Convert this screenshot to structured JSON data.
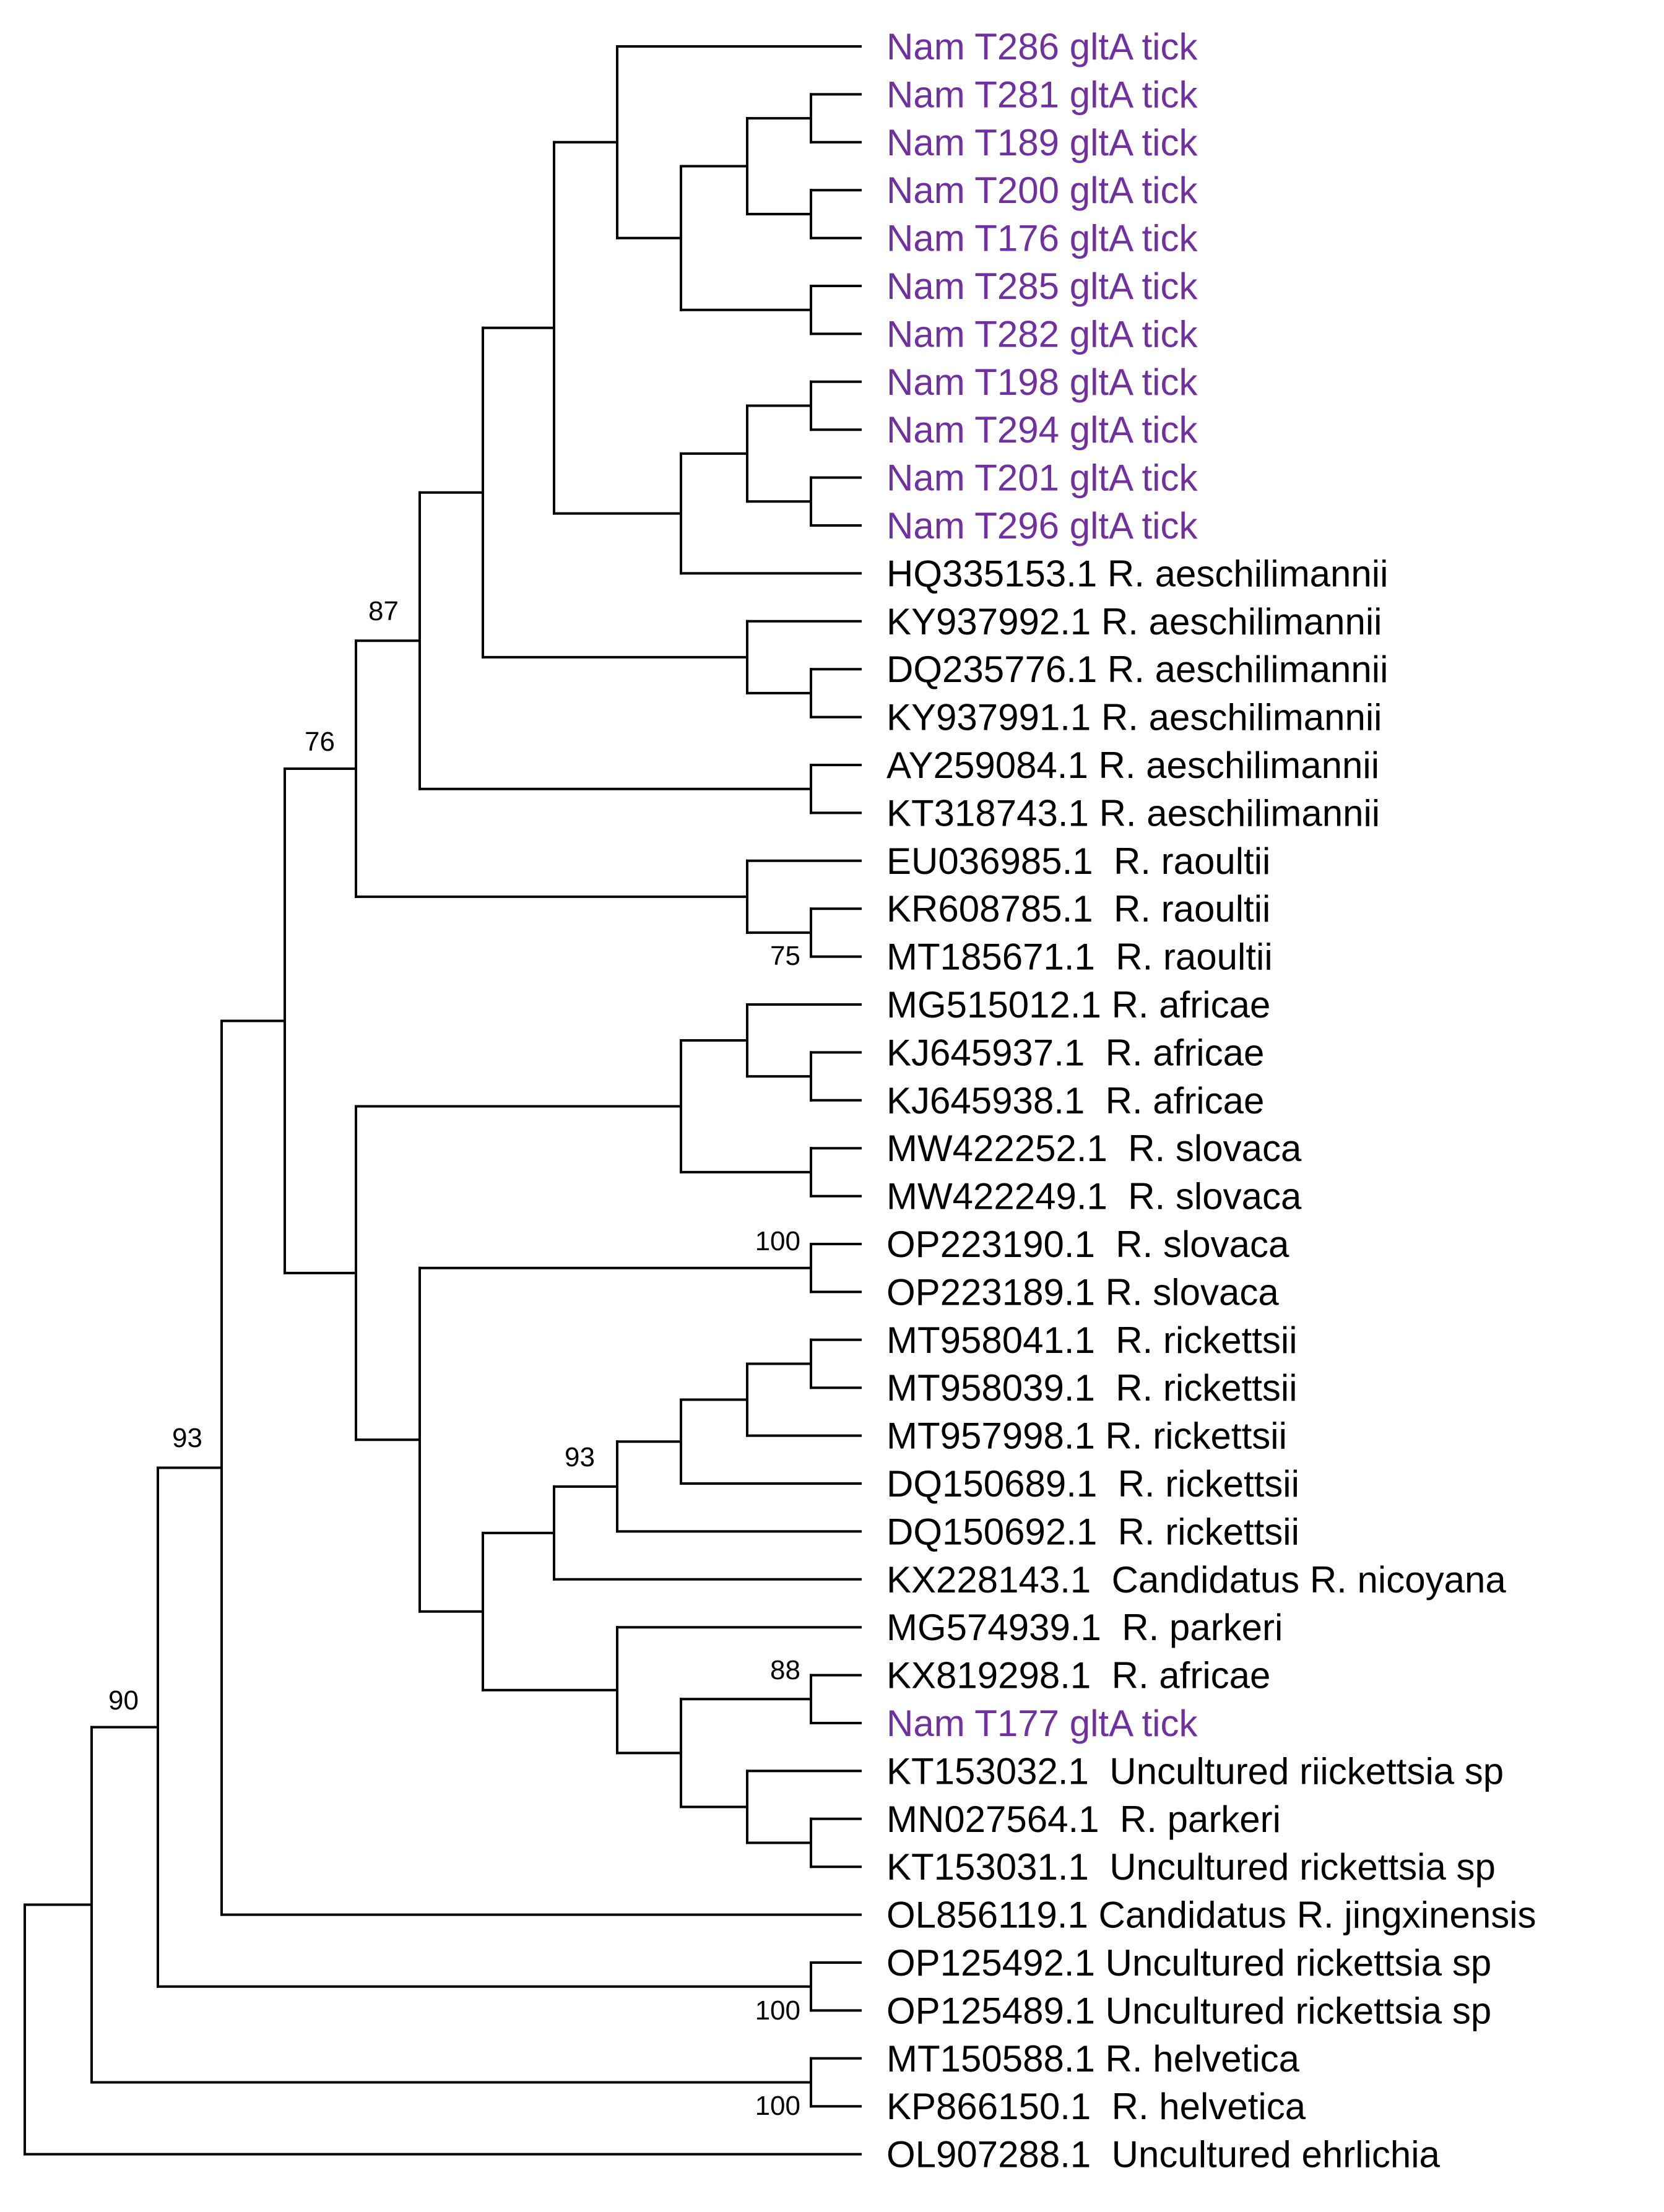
{
  "colors": {
    "query": "#7030a0",
    "reference": "#000000"
  },
  "tree": {
    "type": "phylogenetic-tree",
    "leaves": [
      {
        "label": "Nam T286 gltA tick",
        "group": "query"
      },
      {
        "label": "Nam T281 gltA tick",
        "group": "query"
      },
      {
        "label": "Nam T189 gltA tick",
        "group": "query"
      },
      {
        "label": "Nam T200 gltA tick",
        "group": "query"
      },
      {
        "label": "Nam T176 gltA tick",
        "group": "query"
      },
      {
        "label": "Nam T285 gltA tick",
        "group": "query"
      },
      {
        "label": "Nam T282 gltA tick",
        "group": "query"
      },
      {
        "label": "Nam T198 gltA tick",
        "group": "query"
      },
      {
        "label": "Nam T294 gltA tick",
        "group": "query"
      },
      {
        "label": "Nam T201 gltA tick",
        "group": "query"
      },
      {
        "label": "Nam T296 gltA tick",
        "group": "query"
      },
      {
        "label": "HQ335153.1 R. aeschilimannii",
        "group": "reference"
      },
      {
        "label": "KY937992.1 R. aeschilimannii",
        "group": "reference"
      },
      {
        "label": "DQ235776.1 R. aeschilimannii",
        "group": "reference"
      },
      {
        "label": "KY937991.1 R. aeschilimannii",
        "group": "reference"
      },
      {
        "label": "AY259084.1 R. aeschilimannii",
        "group": "reference"
      },
      {
        "label": "KT318743.1 R. aeschilimannii",
        "group": "reference"
      },
      {
        "label": "EU036985.1  R. raoultii",
        "group": "reference"
      },
      {
        "label": "KR608785.1  R. raoultii",
        "group": "reference"
      },
      {
        "label": "MT185671.1  R. raoultii",
        "group": "reference"
      },
      {
        "label": "MG515012.1 R. africae",
        "group": "reference"
      },
      {
        "label": "KJ645937.1  R. africae",
        "group": "reference"
      },
      {
        "label": "KJ645938.1  R. africae",
        "group": "reference"
      },
      {
        "label": "MW422252.1  R. slovaca",
        "group": "reference"
      },
      {
        "label": "MW422249.1  R. slovaca",
        "group": "reference"
      },
      {
        "label": "OP223190.1  R. slovaca",
        "group": "reference"
      },
      {
        "label": "OP223189.1 R. slovaca",
        "group": "reference"
      },
      {
        "label": "MT958041.1  R. rickettsii",
        "group": "reference"
      },
      {
        "label": "MT958039.1  R. rickettsii",
        "group": "reference"
      },
      {
        "label": "MT957998.1 R. rickettsii",
        "group": "reference"
      },
      {
        "label": "DQ150689.1  R. rickettsii",
        "group": "reference"
      },
      {
        "label": "DQ150692.1  R. rickettsii",
        "group": "reference"
      },
      {
        "label": "KX228143.1  Candidatus R. nicoyana",
        "group": "reference"
      },
      {
        "label": "MG574939.1  R. parkeri",
        "group": "reference"
      },
      {
        "label": "KX819298.1  R. africae",
        "group": "reference"
      },
      {
        "label": "Nam T177 gltA tick",
        "group": "query"
      },
      {
        "label": "KT153032.1  Uncultured riickettsia sp",
        "group": "reference"
      },
      {
        "label": "MN027564.1  R. parkeri",
        "group": "reference"
      },
      {
        "label": "KT153031.1  Uncultured rickettsia sp",
        "group": "reference"
      },
      {
        "label": "OL856119.1 Candidatus R. jingxinensis",
        "group": "reference"
      },
      {
        "label": "OP125492.1 Uncultured rickettsia sp",
        "group": "reference"
      },
      {
        "label": "OP125489.1 Uncultured rickettsia sp",
        "group": "reference"
      },
      {
        "label": "MT150588.1 R. helvetica",
        "group": "reference"
      },
      {
        "label": "KP866150.1  R. helvetica",
        "group": "reference"
      },
      {
        "label": "OL907288.1  Uncultured ehrlichia",
        "group": "reference"
      }
    ],
    "bootstrap_values": [
      "87",
      "76",
      "75",
      "100",
      "93",
      "93",
      "88",
      "90",
      "100",
      "100"
    ]
  }
}
